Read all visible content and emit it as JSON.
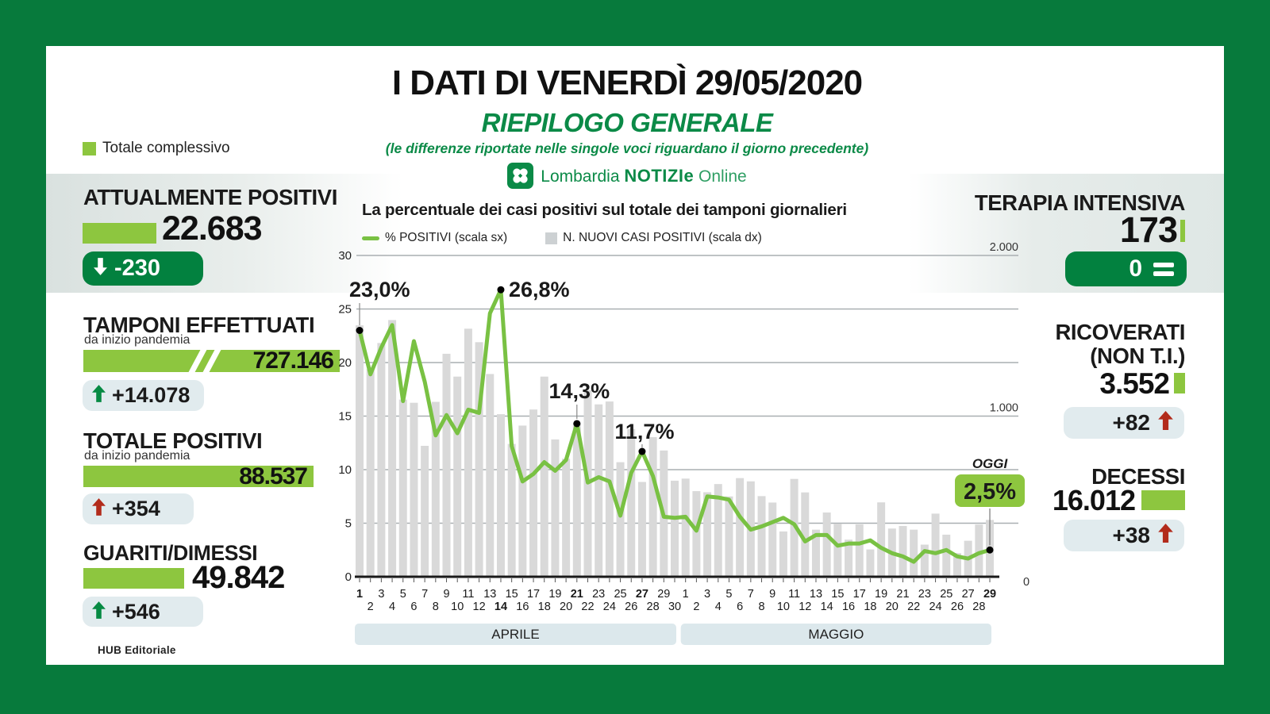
{
  "colors": {
    "frame_green": "#077A3C",
    "light_green": "#8DC63F",
    "dark_green_pill": "#02813F",
    "title_green": "#0B8A47",
    "badge_bg": "#E1EBEE",
    "bar_gray": "#D9D9D9",
    "line_green": "#79C143",
    "red_arrow": "#B22B1B",
    "green_arrow": "#068A43",
    "month_band": "#DCE8EC"
  },
  "header": {
    "title": "I DATI DI VENERDÌ 29/05/2020",
    "subtitle": "RIEPILOGO GENERALE",
    "note": "(le differenze riportate nelle singole voci riguardano il giorno precedente)",
    "legend_total": "Totale complessivo"
  },
  "logo": {
    "brand": "Lombardia",
    "brand_bold": "NOTIZIe",
    "suffix": "Online"
  },
  "left_stats": {
    "attualmente": {
      "title": "ATTUALMENTE POSITIVI",
      "value": "22.683",
      "delta": "-230"
    },
    "tamponi": {
      "title": "TAMPONI EFFETTUATI",
      "subtitle": "da inizio pandemia",
      "value": "727.146",
      "delta": "+14.078"
    },
    "totale": {
      "title": "TOTALE POSITIVI",
      "subtitle": "da inizio pandemia",
      "value": "88.537",
      "delta": "+354"
    },
    "guariti": {
      "title": "GUARITI/DIMESSI",
      "value": "49.842",
      "delta": "+546"
    }
  },
  "right_stats": {
    "terapia": {
      "title": "TERAPIA INTENSIVA",
      "value": "173",
      "delta": "0"
    },
    "ricoverati": {
      "title": "RICOVERATI",
      "title2": "(NON T.I.)",
      "value": "3.552",
      "delta": "+82"
    },
    "decessi": {
      "title": "DECESSI",
      "value": "16.012",
      "delta": "+38"
    }
  },
  "footer": {
    "credit": "HUB Editoriale"
  },
  "chart_data": {
    "type": "bar+line",
    "title": "La percentuale dei casi positivi sul totale dei tamponi giornalieri",
    "legend": [
      {
        "label": "% POSITIVI (scala sx)",
        "swatch": "line"
      },
      {
        "label": "N. NUOVI CASI POSITIVI (scala dx)",
        "swatch": "bar"
      }
    ],
    "left_axis": {
      "ticks": [
        0,
        5,
        10,
        15,
        20,
        25,
        30
      ],
      "max": 30
    },
    "right_axis": {
      "ticks": [
        {
          "v": 0,
          "label": "0"
        },
        {
          "v": 1000,
          "label": "1.000"
        },
        {
          "v": 2000,
          "label": "2.000"
        }
      ],
      "max": 2000
    },
    "months": [
      {
        "label": "APRILE",
        "days": 30
      },
      {
        "label": "MAGGIO",
        "days": 29
      }
    ],
    "series": [
      {
        "name": "% POSITIVI",
        "type": "line",
        "axis": "left",
        "values": [
          23.0,
          18.9,
          21.4,
          23.5,
          16.4,
          22.0,
          18.2,
          13.2,
          15.1,
          13.4,
          15.6,
          15.3,
          24.6,
          26.8,
          12.2,
          8.9,
          9.6,
          10.7,
          9.9,
          10.9,
          14.3,
          8.8,
          9.3,
          8.9,
          5.7,
          9.7,
          11.7,
          9.4,
          5.6,
          5.5,
          5.6,
          4.3,
          7.5,
          7.4,
          7.2,
          5.6,
          4.4,
          4.7,
          5.1,
          5.5,
          4.9,
          3.3,
          3.9,
          3.9,
          2.9,
          3.1,
          3.1,
          3.4,
          2.7,
          2.2,
          1.9,
          1.4,
          2.4,
          2.2,
          2.5,
          1.9,
          1.7,
          2.2,
          2.5
        ]
      },
      {
        "name": "N. NUOVI CASI POSITIVI",
        "type": "bar",
        "axis": "right",
        "values": [
          1565,
          1292,
          1455,
          1598,
          1103,
          1083,
          815,
          1089,
          1388,
          1246,
          1544,
          1460,
          1262,
          1012,
          827,
          941,
          1041,
          1246,
          855,
          735,
          960,
          1161,
          1073,
          1091,
          713,
          920,
          590,
          869,
          786,
          598,
          611,
          533,
          526,
          577,
          500,
          614,
          594,
          502,
          462,
          282,
          609,
          525,
          293,
          400,
          331,
          231,
          326,
          170,
          463,
          300,
          316,
          293,
          200,
          393,
          262,
          147,
          224,
          325,
          354
        ]
      }
    ],
    "annotations": [
      {
        "index": 0,
        "label": "23,0%"
      },
      {
        "index": 13,
        "label": "26,8%"
      },
      {
        "index": 20,
        "label": "14,3%"
      },
      {
        "index": 26,
        "label": "11,7%"
      },
      {
        "index": 58,
        "label": "2,5%",
        "tag": "OGGI"
      }
    ]
  }
}
